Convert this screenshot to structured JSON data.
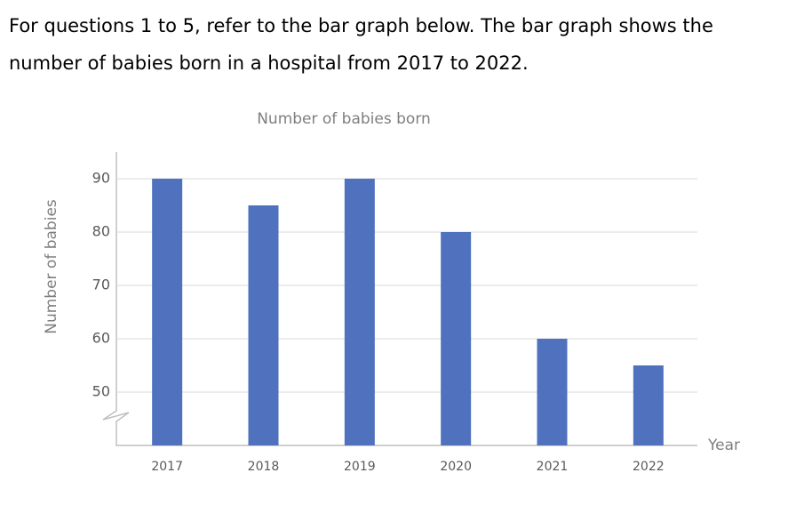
{
  "question_lines": [
    "For questions 1 to 5, refer to the bar graph below. The bar graph shows the",
    "number of babies born in a hospital from 2017 to 2022."
  ],
  "chart_data": {
    "type": "bar",
    "title": "Number of babies born",
    "x_label": "Year",
    "y_label": "Number of babies",
    "categories": [
      "2017",
      "2018",
      "2019",
      "2020",
      "2021",
      "2022"
    ],
    "values": [
      90,
      85,
      90,
      80,
      60,
      55
    ],
    "color": "#4f71be",
    "ylim": [
      40,
      95
    ],
    "yticks": [
      50,
      60,
      70,
      80,
      90
    ],
    "grid": true
  }
}
